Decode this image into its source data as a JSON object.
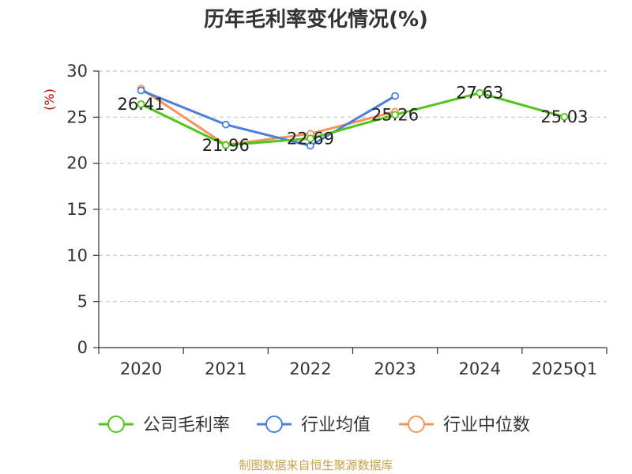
{
  "chart_data": {
    "type": "line",
    "title": "历年毛利率变化情况(%)",
    "ylabel": "(%)",
    "categories": [
      "2020",
      "2021",
      "2022",
      "2023",
      "2024",
      "2025Q1"
    ],
    "ylim": [
      0,
      30
    ],
    "yticks": [
      0,
      5,
      10,
      15,
      20,
      25,
      30
    ],
    "grid": true,
    "legend_position": "bottom",
    "series": [
      {
        "name": "公司毛利率",
        "color": "#52c41a",
        "values": [
          26.41,
          21.96,
          22.69,
          25.26,
          27.63,
          25.03
        ],
        "labels": [
          "26.41",
          "21.96",
          "22.69",
          "25.26",
          "27.63",
          "25.03"
        ]
      },
      {
        "name": "行业均值",
        "color": "#4a7fdc",
        "values": [
          27.9,
          24.2,
          21.9,
          27.3,
          null,
          null
        ]
      },
      {
        "name": "行业中位数",
        "color": "#f4935c",
        "values": [
          28.1,
          22.0,
          23.2,
          25.6,
          null,
          null
        ]
      }
    ],
    "ylabel_color": "#cc0000"
  },
  "footer": {
    "source": "制图数据来自恒生聚源数据库"
  }
}
